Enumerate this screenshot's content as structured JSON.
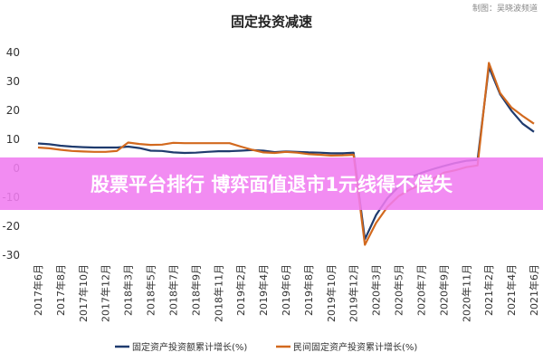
{
  "chart_data": {
    "type": "line",
    "title": "固定投资减速",
    "credit": "制图：吴晓波频道",
    "ylim": [
      -30,
      40
    ],
    "yticks": [
      40,
      30,
      20,
      10,
      0,
      -10,
      -20,
      -30
    ],
    "grid": false,
    "legend_position": "bottom",
    "x": [
      "2017年6月",
      "2017年7月",
      "2017年8月",
      "2017年9月",
      "2017年10月",
      "2017年11月",
      "2017年12月",
      "2018年1月",
      "2018年3月",
      "2018年4月",
      "2018年5月",
      "2018年6月",
      "2018年7月",
      "2018年8月",
      "2018年9月",
      "2018年10月",
      "2018年11月",
      "2018年12月",
      "2019年2月",
      "2019年3月",
      "2019年4月",
      "2019年5月",
      "2019年6月",
      "2019年7月",
      "2019年8月",
      "2019年9月",
      "2019年10月",
      "2019年11月",
      "2019年12月",
      "2020年2月",
      "2020年3月",
      "2020年4月",
      "2020年5月",
      "2020年6月",
      "2020年7月",
      "2020年8月",
      "2020年9月",
      "2020年10月",
      "2020年11月",
      "2020年12月",
      "2021年2月",
      "2021年3月",
      "2021年4月",
      "2021年5月",
      "2021年6月"
    ],
    "xtick_labels": [
      "2017年6月",
      "2017年8月",
      "2017年10月",
      "2017年12月",
      "2018年3月",
      "2018年5月",
      "2018年7月",
      "2018年9月",
      "2018年11月",
      "2019年2月",
      "2019年4月",
      "2019年6月",
      "2019年8月",
      "2019年10月",
      "2019年12月",
      "2020年3月",
      "2020年5月",
      "2020年7月",
      "2020年9月",
      "2020年11月",
      "2021年2月",
      "2021年4月",
      "2021年6月"
    ],
    "series": [
      {
        "name": "固定资产投资额累计增长(%)",
        "color": "#1f3b6e",
        "values": [
          8.6,
          8.3,
          7.8,
          7.5,
          7.3,
          7.2,
          7.2,
          7.2,
          7.5,
          7.0,
          6.1,
          6.0,
          5.5,
          5.3,
          5.4,
          5.7,
          5.9,
          5.9,
          6.1,
          6.3,
          6.1,
          5.6,
          5.8,
          5.7,
          5.5,
          5.4,
          5.2,
          5.2,
          5.4,
          -24.5,
          -16.1,
          -10.3,
          -6.3,
          -3.1,
          -1.6,
          -0.3,
          0.8,
          1.8,
          2.6,
          2.9,
          35.0,
          25.6,
          19.9,
          15.4,
          12.6
        ]
      },
      {
        "name": "民间固定资产投资累计增长(%)",
        "color": "#d2691e",
        "values": [
          7.2,
          6.9,
          6.4,
          6.0,
          5.8,
          5.7,
          5.7,
          6.0,
          8.9,
          8.4,
          8.1,
          8.2,
          8.8,
          8.7,
          8.7,
          8.7,
          8.7,
          8.7,
          7.5,
          6.4,
          5.5,
          5.3,
          5.7,
          5.4,
          4.9,
          4.7,
          4.4,
          4.5,
          4.7,
          -26.4,
          -18.8,
          -13.3,
          -9.6,
          -7.3,
          -5.7,
          -3.7,
          -1.5,
          -0.7,
          0.4,
          1.0,
          36.4,
          26.0,
          21.0,
          18.1,
          15.4
        ]
      }
    ]
  },
  "banner": {
    "text": "股票平台排行 博弈面值退市1元线得不偿失"
  }
}
